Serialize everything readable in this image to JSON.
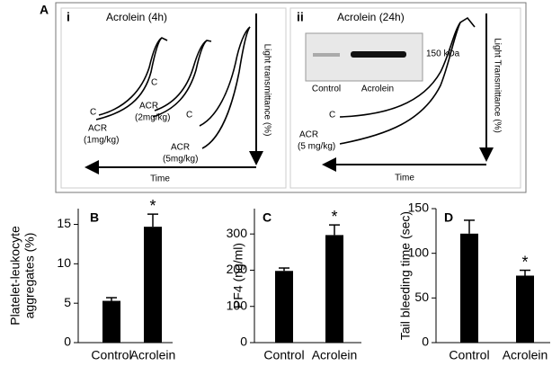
{
  "panel_a": {
    "label": "A",
    "i": {
      "label": "i",
      "title": "Acrolein (4h)",
      "y_arrow_label": "Light transmittance (%)",
      "x_arrow_label": "Time",
      "curve_labels": [
        "C",
        "C",
        "C"
      ],
      "dose_labels": [
        [
          "ACR",
          "(1mg/kg)"
        ],
        [
          "ACR",
          "(2mg/kg)"
        ],
        [
          "ACR",
          "(5mg/kg)"
        ]
      ]
    },
    "ii": {
      "label": "ii",
      "title": "Acrolein (24h)",
      "y_arrow_label": "Light Transmittance (%)",
      "x_arrow_label": "Time",
      "curve_label": "C",
      "dose_label": [
        "ACR",
        "(5 mg/kg)"
      ],
      "blot": {
        "marker": "150 kDa",
        "lanes": [
          "Control",
          "Acrolein"
        ]
      }
    }
  },
  "chart_data": [
    {
      "type": "bar",
      "panel_label": "B",
      "ylabel": [
        "Platelet-leukocyte",
        "aggregates (%)"
      ],
      "categories": [
        "Control",
        "Acrolein"
      ],
      "values": [
        5.3,
        14.7
      ],
      "errors": [
        0.4,
        1.6
      ],
      "color": "#000000",
      "annotation": "*",
      "ylim": [
        0,
        17
      ],
      "yticks": [
        0,
        5,
        10,
        15
      ]
    },
    {
      "type": "bar",
      "panel_label": "C",
      "ylabel": [
        "PF4 (ng/ml)"
      ],
      "categories": [
        "Control",
        "Acrolein"
      ],
      "values": [
        198,
        297
      ],
      "errors": [
        8,
        28
      ],
      "color": "#000000",
      "annotation": "*",
      "ylim": [
        0,
        370
      ],
      "yticks": [
        0,
        100,
        200,
        300
      ]
    },
    {
      "type": "bar",
      "panel_label": "D",
      "ylabel": [
        "Tail bleeding time (sec)"
      ],
      "categories": [
        "Control",
        "Acrolein"
      ],
      "values": [
        122,
        75
      ],
      "errors": [
        15,
        6
      ],
      "color": "#000000",
      "annotation": "*",
      "ylim": [
        0,
        150
      ],
      "yticks": [
        0,
        50,
        100,
        150
      ]
    }
  ]
}
